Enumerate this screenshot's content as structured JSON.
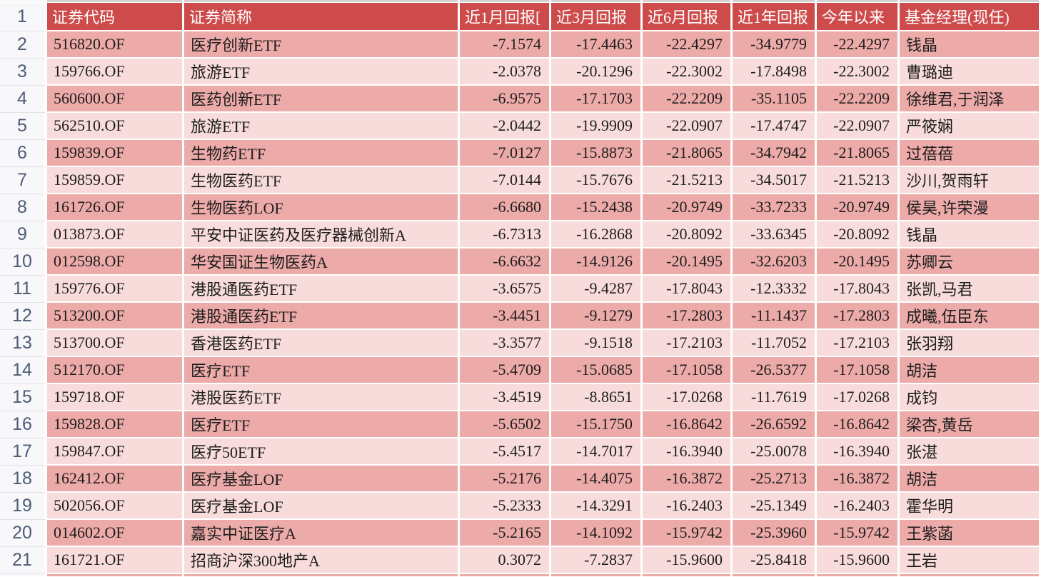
{
  "app": {
    "view": "spreadsheet-fund-return-table"
  },
  "colors": {
    "header_bg": "#ce4b4b",
    "header_text": "#ffffff",
    "row_dark": "#ecaaa8",
    "row_light": "#f8dcdb",
    "gridline": "#ffffff",
    "gutter_bg": "#f8f8fa",
    "gutter_text": "#4e5c77",
    "body_text": "#1d1d1d",
    "clipped_row_above": "#d2d2d2"
  },
  "sheet": {
    "header_row_number": "1",
    "columns": [
      {
        "key": "code",
        "label": "证券代码",
        "align": "left"
      },
      {
        "key": "name",
        "label": "证券简称",
        "align": "left"
      },
      {
        "key": "r1m",
        "label": "近1月回报[",
        "align": "right"
      },
      {
        "key": "r3m",
        "label": "近3月回报",
        "align": "right"
      },
      {
        "key": "r6m",
        "label": "近6月回报",
        "align": "right"
      },
      {
        "key": "r1y",
        "label": "近1年回报",
        "align": "right"
      },
      {
        "key": "ytd",
        "label": "今年以来",
        "align": "right"
      },
      {
        "key": "manager",
        "label": "基金经理(现任)",
        "align": "left"
      }
    ],
    "rows": [
      {
        "row_number": "2",
        "code": "516820.OF",
        "name": "医疗创新ETF",
        "r1m": "-7.1574",
        "r3m": "-17.4463",
        "r6m": "-22.4297",
        "r1y": "-34.9779",
        "ytd": "-22.4297",
        "manager": "钱晶"
      },
      {
        "row_number": "3",
        "code": "159766.OF",
        "name": "旅游ETF",
        "r1m": "-2.0378",
        "r3m": "-20.1296",
        "r6m": "-22.3002",
        "r1y": "-17.8498",
        "ytd": "-22.3002",
        "manager": "曹璐迪"
      },
      {
        "row_number": "4",
        "code": "560600.OF",
        "name": "医药创新ETF",
        "r1m": "-6.9575",
        "r3m": "-17.1703",
        "r6m": "-22.2209",
        "r1y": "-35.1105",
        "ytd": "-22.2209",
        "manager": "徐维君,于润泽"
      },
      {
        "row_number": "5",
        "code": "562510.OF",
        "name": "旅游ETF",
        "r1m": "-2.0442",
        "r3m": "-19.9909",
        "r6m": "-22.0907",
        "r1y": "-17.4747",
        "ytd": "-22.0907",
        "manager": "严筱娴"
      },
      {
        "row_number": "6",
        "code": "159839.OF",
        "name": "生物药ETF",
        "r1m": "-7.0127",
        "r3m": "-15.8873",
        "r6m": "-21.8065",
        "r1y": "-34.7942",
        "ytd": "-21.8065",
        "manager": "过蓓蓓"
      },
      {
        "row_number": "7",
        "code": "159859.OF",
        "name": "生物医药ETF",
        "r1m": "-7.0144",
        "r3m": "-15.7676",
        "r6m": "-21.5213",
        "r1y": "-34.5017",
        "ytd": "-21.5213",
        "manager": "沙川,贺雨轩"
      },
      {
        "row_number": "8",
        "code": "161726.OF",
        "name": "生物医药LOF",
        "r1m": "-6.6680",
        "r3m": "-15.2438",
        "r6m": "-20.9749",
        "r1y": "-33.7233",
        "ytd": "-20.9749",
        "manager": "侯昊,许荣漫"
      },
      {
        "row_number": "9",
        "code": "013873.OF",
        "name": "平安中证医药及医疗器械创新A",
        "r1m": "-6.7313",
        "r3m": "-16.2868",
        "r6m": "-20.8092",
        "r1y": "-33.6345",
        "ytd": "-20.8092",
        "manager": "钱晶"
      },
      {
        "row_number": "10",
        "code": "012598.OF",
        "name": "华安国证生物医药A",
        "r1m": "-6.6632",
        "r3m": "-14.9126",
        "r6m": "-20.1495",
        "r1y": "-32.6203",
        "ytd": "-20.1495",
        "manager": "苏卿云"
      },
      {
        "row_number": "11",
        "code": "159776.OF",
        "name": "港股通医药ETF",
        "r1m": "-3.6575",
        "r3m": "-9.4287",
        "r6m": "-17.8043",
        "r1y": "-12.3332",
        "ytd": "-17.8043",
        "manager": "张凯,马君"
      },
      {
        "row_number": "12",
        "code": "513200.OF",
        "name": "港股通医药ETF",
        "r1m": "-3.4451",
        "r3m": "-9.1279",
        "r6m": "-17.2803",
        "r1y": "-11.1437",
        "ytd": "-17.2803",
        "manager": "成曦,伍臣东"
      },
      {
        "row_number": "13",
        "code": "513700.OF",
        "name": "香港医药ETF",
        "r1m": "-3.3577",
        "r3m": "-9.1518",
        "r6m": "-17.2103",
        "r1y": "-11.7052",
        "ytd": "-17.2103",
        "manager": "张羽翔"
      },
      {
        "row_number": "14",
        "code": "512170.OF",
        "name": "医疗ETF",
        "r1m": "-5.4709",
        "r3m": "-15.0685",
        "r6m": "-17.1058",
        "r1y": "-26.5377",
        "ytd": "-17.1058",
        "manager": "胡洁"
      },
      {
        "row_number": "15",
        "code": "159718.OF",
        "name": "港股医药ETF",
        "r1m": "-3.4519",
        "r3m": "-8.8651",
        "r6m": "-17.0268",
        "r1y": "-11.7619",
        "ytd": "-17.0268",
        "manager": "成钧"
      },
      {
        "row_number": "16",
        "code": "159828.OF",
        "name": "医疗ETF",
        "r1m": "-5.6502",
        "r3m": "-15.1750",
        "r6m": "-16.8642",
        "r1y": "-26.6592",
        "ytd": "-16.8642",
        "manager": "梁杏,黄岳"
      },
      {
        "row_number": "17",
        "code": "159847.OF",
        "name": "医疗50ETF",
        "r1m": "-5.4517",
        "r3m": "-14.7017",
        "r6m": "-16.3940",
        "r1y": "-25.0078",
        "ytd": "-16.3940",
        "manager": "张湛"
      },
      {
        "row_number": "18",
        "code": "162412.OF",
        "name": "医疗基金LOF",
        "r1m": "-5.2176",
        "r3m": "-14.4075",
        "r6m": "-16.3872",
        "r1y": "-25.2713",
        "ytd": "-16.3872",
        "manager": "胡洁"
      },
      {
        "row_number": "19",
        "code": "502056.OF",
        "name": "医疗基金LOF",
        "r1m": "-5.2333",
        "r3m": "-14.3291",
        "r6m": "-16.2403",
        "r1y": "-25.1349",
        "ytd": "-16.2403",
        "manager": "霍华明"
      },
      {
        "row_number": "20",
        "code": "014602.OF",
        "name": "嘉实中证医疗A",
        "r1m": "-5.2165",
        "r3m": "-14.1092",
        "r6m": "-15.9742",
        "r1y": "-25.3960",
        "ytd": "-15.9742",
        "manager": "王紫菡"
      },
      {
        "row_number": "21",
        "code": "161721.OF",
        "name": "招商沪深300地产A",
        "r1m": "0.3072",
        "r3m": "-7.2837",
        "r6m": "-15.9600",
        "r1y": "-25.8418",
        "ytd": "-15.9600",
        "manager": "王岩"
      }
    ]
  }
}
